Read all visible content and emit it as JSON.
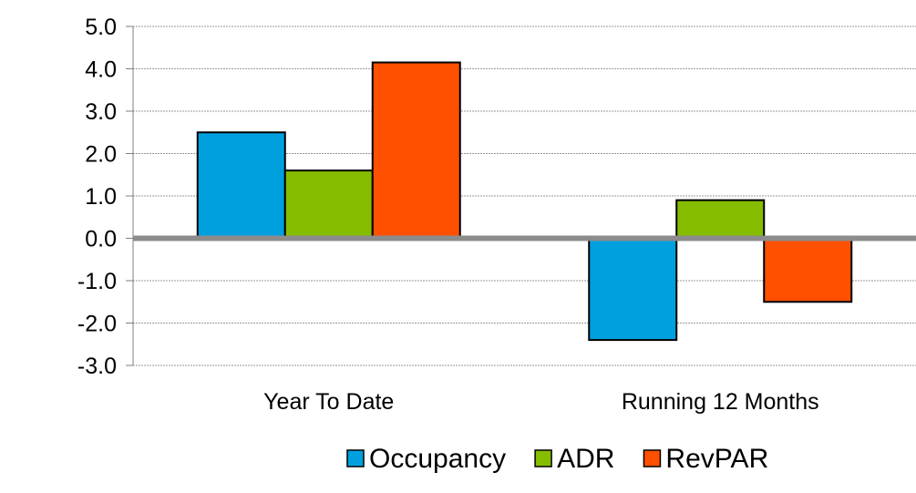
{
  "chart_data": {
    "type": "bar",
    "categories": [
      "Year To Date",
      "Running 12 Months"
    ],
    "series": [
      {
        "name": "Occupancy",
        "values": [
          2.5,
          -2.4
        ],
        "color": "#00A0DF"
      },
      {
        "name": "ADR",
        "values": [
          1.6,
          0.9
        ],
        "color": "#86BC00"
      },
      {
        "name": "RevPAR",
        "values": [
          4.15,
          -1.5
        ],
        "color": "#FF5000"
      }
    ],
    "ylim": [
      -3.0,
      5.0
    ],
    "yticks": [
      "5.0",
      "4.0",
      "3.0",
      "2.0",
      "1.0",
      "0.0",
      "-1.0",
      "-2.0",
      "-3.0"
    ],
    "grid": true,
    "legend_position": "bottom",
    "title": "",
    "xlabel": "",
    "ylabel": ""
  }
}
